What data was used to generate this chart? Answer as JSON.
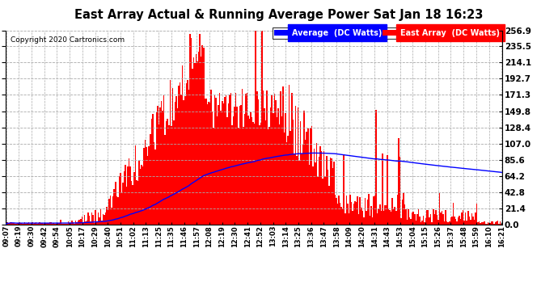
{
  "title": "East Array Actual & Running Average Power Sat Jan 18 16:23",
  "copyright": "Copyright 2020 Cartronics.com",
  "yticks": [
    0.0,
    21.4,
    42.8,
    64.2,
    85.6,
    107.0,
    128.4,
    149.8,
    171.3,
    192.7,
    214.1,
    235.5,
    256.9
  ],
  "ymax": 256.9,
  "ymin": 0.0,
  "legend_avg_label": "Average  (DC Watts)",
  "legend_east_label": "East Array  (DC Watts)",
  "avg_color": "#0000ff",
  "east_color": "#ff0000",
  "background_color": "#ffffff",
  "grid_color": "#aaaaaa",
  "x_tick_labels": [
    "09:07",
    "09:19",
    "09:30",
    "09:42",
    "09:54",
    "10:05",
    "10:17",
    "10:29",
    "10:40",
    "10:51",
    "11:02",
    "11:13",
    "11:25",
    "11:35",
    "11:46",
    "11:57",
    "12:08",
    "12:19",
    "12:30",
    "12:41",
    "12:52",
    "13:03",
    "13:14",
    "13:25",
    "13:36",
    "13:47",
    "13:58",
    "14:09",
    "14:20",
    "14:31",
    "14:43",
    "14:53",
    "15:04",
    "15:15",
    "15:26",
    "15:37",
    "15:48",
    "15:59",
    "16:10",
    "16:21"
  ],
  "n_points": 400
}
